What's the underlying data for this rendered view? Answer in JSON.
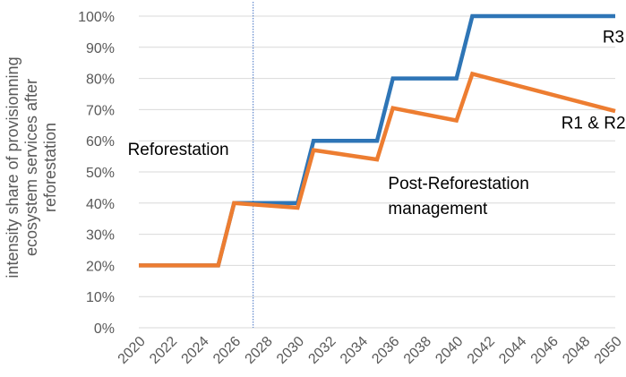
{
  "chart_data": {
    "type": "line",
    "ylabel": "intensity share of provisionning ecosystem services after reforestation",
    "ylabel_lines": [
      "intensity share of provisionning",
      "ecosystem services after",
      "reforestation"
    ],
    "xlabel": "",
    "title": "",
    "xlim": [
      2020,
      2050
    ],
    "ylim": [
      0,
      100
    ],
    "x_ticks": [
      "2020",
      "2022",
      "2024",
      "2026",
      "2028",
      "2030",
      "2032",
      "2034",
      "2036",
      "2038",
      "2040",
      "2042",
      "2044",
      "2046",
      "2048",
      "2050"
    ],
    "y_ticks": [
      "0%",
      "10%",
      "20%",
      "30%",
      "40%",
      "50%",
      "60%",
      "70%",
      "80%",
      "90%",
      "100%"
    ],
    "grid": "horizontal",
    "legend": "none",
    "vertical_marker": {
      "x": 2027.2,
      "style": "dotted",
      "color": "#4472C4"
    },
    "series": [
      {
        "name": "R3",
        "color": "#2E75B6",
        "x": [
          2020,
          2025,
          2026,
          2030,
          2031,
          2035,
          2036,
          2040,
          2041,
          2050
        ],
        "values": [
          20,
          20,
          40,
          40,
          60,
          60,
          80,
          80,
          100,
          100
        ]
      },
      {
        "name": "R1 & R2",
        "color": "#ED7D31",
        "x": [
          2020,
          2025,
          2026,
          2030,
          2031,
          2035,
          2036,
          2040,
          2041,
          2050
        ],
        "values": [
          20,
          20,
          40,
          38.5,
          57,
          54,
          70.5,
          66.5,
          81.5,
          69.5
        ]
      }
    ],
    "annotations": [
      {
        "text": "R3",
        "x": 2049.2,
        "y": 91.5
      },
      {
        "text": "R1 & R2",
        "x": 2046.6,
        "y": 64
      },
      {
        "text": "Reforestation",
        "x": 2019.3,
        "y": 55.5
      },
      {
        "text": "Post-Reforestation",
        "x": 2035.7,
        "y": 44.5
      },
      {
        "text": "management",
        "x": 2035.7,
        "y": 36.5
      }
    ]
  }
}
